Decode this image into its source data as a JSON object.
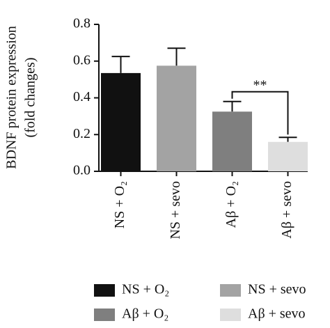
{
  "chart_data": {
    "type": "bar",
    "y_label": [
      "BDNF protein expression",
      "(fold changes)"
    ],
    "categories": [
      "NS + O₂",
      "NS + sevo",
      "Aβ + O₂",
      "Aβ + sevo"
    ],
    "values": [
      0.535,
      0.575,
      0.325,
      0.16
    ],
    "errors": [
      0.09,
      0.095,
      0.055,
      0.025
    ],
    "colors": [
      "#111111",
      "#a3a3a3",
      "#7f7f7f",
      "#dedede"
    ],
    "ylim": [
      0,
      0.8
    ],
    "yticks": [
      {
        "value": 0,
        "label": "0.0"
      },
      {
        "value": 0.2,
        "label": "0.2"
      },
      {
        "value": 0.4,
        "label": "0.4"
      },
      {
        "value": 0.6,
        "label": "0.6"
      },
      {
        "value": 0.8,
        "label": "0.8"
      }
    ],
    "annotation": {
      "text": "**",
      "between": [
        2,
        3
      ]
    },
    "legend_columns": 2
  }
}
